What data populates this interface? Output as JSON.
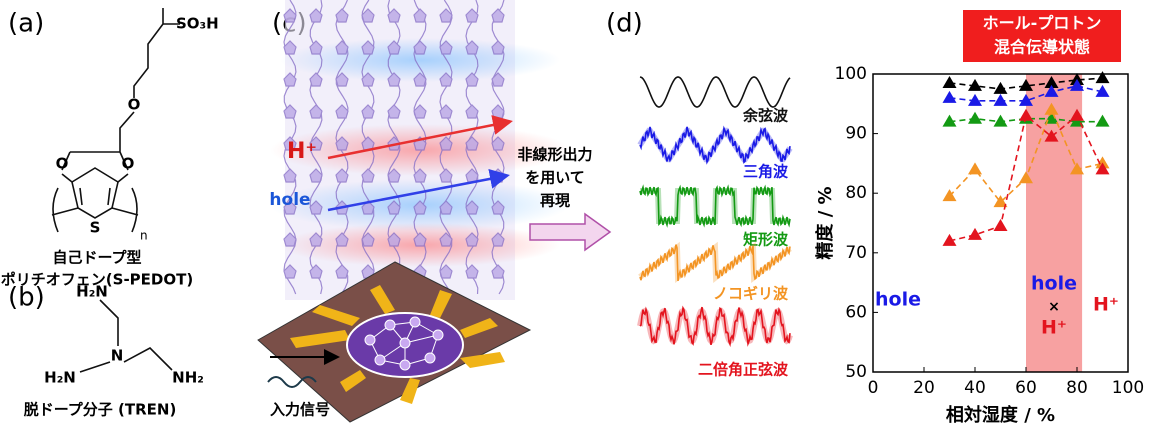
{
  "panels": {
    "a": "(a)",
    "b": "(b)",
    "c": "(c)",
    "d": "(d)"
  },
  "structure_a": {
    "substituent": "SO₃H",
    "oxygens": [
      "O",
      "O",
      "O"
    ],
    "sulfur": "S",
    "repeat": "n",
    "caption": [
      "自己ドープ型",
      "ポリチオフェン(S-PEDOT)"
    ]
  },
  "structure_b": {
    "amines": [
      "H₂N",
      "H₂N",
      "NH₂"
    ],
    "center": "N",
    "caption": "脱ドープ分子 (TREN)"
  },
  "schematic_c": {
    "proton": "H⁺",
    "hole": "hole",
    "input": "入力信号"
  },
  "process_label": [
    "非線形出力",
    "を用いて",
    "再現"
  ],
  "waveforms": [
    {
      "label": "余弦波",
      "color": "#111111"
    },
    {
      "label": "三角波",
      "color": "#1a1ae6"
    },
    {
      "label": "矩形波",
      "color": "#139a13"
    },
    {
      "label": "ノコギリ波",
      "color": "#f39423"
    },
    {
      "label": "二倍角正弦波",
      "color": "#e3141e"
    }
  ],
  "chart_data": {
    "type": "line",
    "marker": "triangle",
    "linestyle": "dashed",
    "box_label": [
      "ホール-プロトン",
      "混合伝導状態"
    ],
    "xlabel": "相対湿度 / %",
    "ylabel": "精度 / %",
    "x": [
      30,
      40,
      50,
      60,
      70,
      80,
      90
    ],
    "series": [
      {
        "color": "#000000",
        "values": [
          98.5,
          98,
          97.5,
          98,
          98.5,
          99,
          99.3
        ]
      },
      {
        "color": "#1a1ae6",
        "values": [
          96,
          95.5,
          95.5,
          95.5,
          97,
          98,
          97
        ]
      },
      {
        "color": "#139a13",
        "values": [
          92,
          92.5,
          92,
          92.5,
          92.5,
          92,
          92
        ]
      },
      {
        "color": "#f39423",
        "values": [
          79.5,
          84,
          78.5,
          82.5,
          94,
          84,
          85
        ]
      },
      {
        "color": "#e3141e",
        "values": [
          72,
          73,
          74.5,
          93,
          89.5,
          93,
          84
        ]
      }
    ],
    "shaded_xrange": [
      60,
      82
    ],
    "annotations": [
      "hole",
      "hole",
      "×",
      "H⁺",
      "H⁺"
    ],
    "xlim": [
      0,
      100
    ],
    "xticks": [
      0,
      20,
      40,
      60,
      80,
      100
    ],
    "ylim": [
      50,
      100
    ],
    "yticks": [
      50,
      60,
      70,
      80,
      90,
      100
    ]
  }
}
